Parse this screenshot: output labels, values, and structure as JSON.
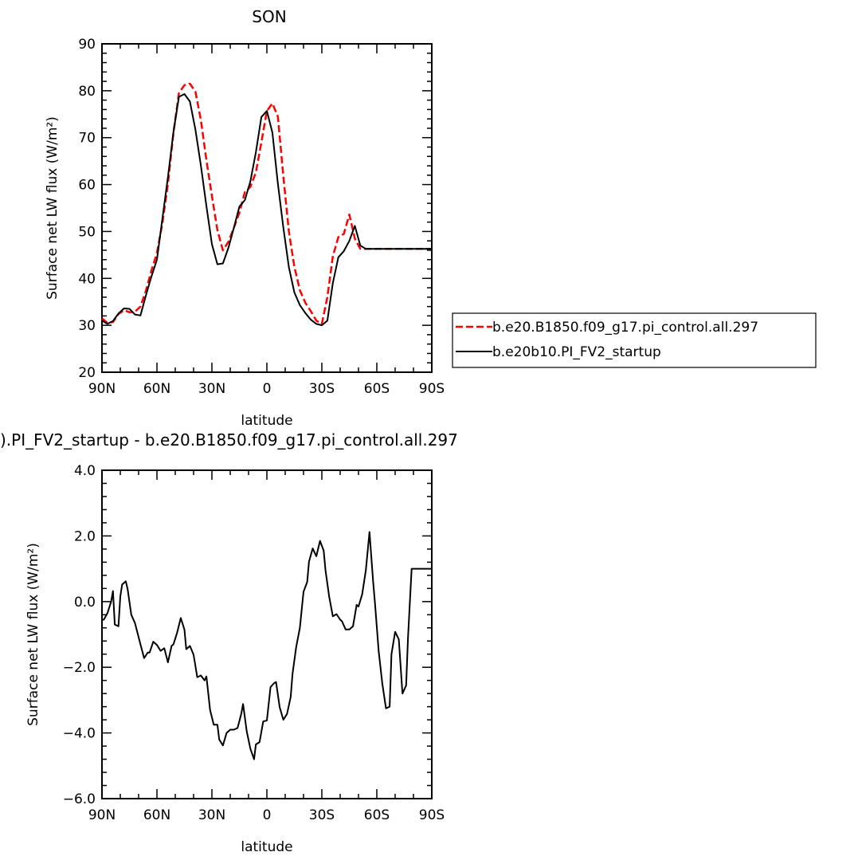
{
  "chart_data": [
    {
      "type": "line",
      "title": "SON",
      "xlabel": "latitude",
      "ylabel": "Surface net LW flux (W/m²)",
      "xlim": [
        90,
        -90
      ],
      "ylim": [
        20,
        90
      ],
      "xticks": [
        90,
        60,
        30,
        0,
        -30,
        -60,
        -90
      ],
      "xtick_labels": [
        "90N",
        "60N",
        "30N",
        "0",
        "30S",
        "60S",
        "90S"
      ],
      "yticks": [
        20,
        30,
        40,
        50,
        60,
        70,
        80,
        90
      ],
      "ytick_labels": [
        "20",
        "30",
        "40",
        "50",
        "60",
        "70",
        "80",
        "90"
      ],
      "legend_position": "right",
      "series": [
        {
          "name": "b.e20.B1850.f09_g17.pi_control.all.297",
          "color": "#ff0000",
          "style": "dashed",
          "x": [
            90,
            87,
            84,
            81,
            78,
            75,
            72,
            69,
            66,
            63,
            60,
            57,
            54,
            51,
            48,
            45,
            42,
            39,
            36,
            33,
            30,
            27,
            24,
            21,
            18,
            15,
            12,
            9,
            6,
            3,
            0,
            -3,
            -6,
            -9,
            -12,
            -15,
            -18,
            -21,
            -24,
            -27,
            -30,
            -33,
            -36,
            -39,
            -42,
            -45,
            -48,
            -51,
            -54,
            -57,
            -60,
            -63,
            -66,
            -69,
            -72,
            -75,
            -78,
            -81,
            -84,
            -87,
            -90
          ],
          "y": [
            31.5,
            30.5,
            30.7,
            32.4,
            33.2,
            32.8,
            32.9,
            34.0,
            37.4,
            41.7,
            45.4,
            51.8,
            60.2,
            71.0,
            79.5,
            81.2,
            81.5,
            79.8,
            73.7,
            65.2,
            57.6,
            50.3,
            46.0,
            47.8,
            50.8,
            54.0,
            58.4,
            59.5,
            62.6,
            69.0,
            75.7,
            77.3,
            74.5,
            61.7,
            50.0,
            42.5,
            37.5,
            34.8,
            33.0,
            31.0,
            30.3,
            36.0,
            44.7,
            48.8,
            49.5,
            53.6,
            48.5,
            46.3,
            46.3,
            46.3,
            46.3,
            46.3,
            46.3,
            46.3,
            46.3,
            46.3,
            46.3,
            46.3,
            46.3,
            46.3,
            46.3
          ]
        },
        {
          "name": "b.e20b10.PI_FV2_startup",
          "color": "#000000",
          "style": "solid",
          "x": [
            90,
            87,
            84,
            81,
            78,
            75,
            72,
            69,
            66,
            63,
            60,
            57,
            54,
            51,
            48,
            45,
            42,
            39,
            36,
            33,
            30,
            27,
            24,
            21,
            18,
            15,
            12,
            9,
            6,
            3,
            0,
            -3,
            -6,
            -9,
            -12,
            -15,
            -18,
            -21,
            -24,
            -27,
            -30,
            -33,
            -36,
            -39,
            -42,
            -45,
            -48,
            -51,
            -54,
            -57,
            -60,
            -63,
            -66,
            -69,
            -72,
            -75,
            -78,
            -81,
            -84,
            -87,
            -90
          ],
          "y": [
            31.0,
            30.3,
            30.9,
            32.5,
            33.6,
            33.5,
            32.3,
            32.1,
            36.4,
            40.4,
            44.0,
            52.8,
            61.6,
            71.2,
            78.7,
            79.3,
            77.7,
            71.7,
            64.0,
            55.4,
            47.3,
            43.0,
            43.2,
            46.5,
            50.8,
            55.3,
            56.7,
            60.7,
            66.9,
            74.4,
            75.7,
            71.1,
            60.2,
            50.8,
            42.4,
            37.0,
            34.3,
            32.6,
            31.2,
            30.3,
            30.0,
            31.0,
            39.0,
            44.5,
            45.8,
            48.0,
            51.2,
            47.0,
            46.3,
            46.3,
            46.3,
            46.3,
            46.3,
            46.3,
            46.3,
            46.3,
            46.3,
            46.3,
            46.3,
            46.3,
            46.3
          ]
        }
      ]
    },
    {
      "type": "line",
      "title": ").PI_FV2_startup - b.e20.B1850.f09_g17.pi_control.all.297",
      "xlabel": "latitude",
      "ylabel": "Surface net LW flux (W/m²)",
      "xlim": [
        90,
        -90
      ],
      "ylim": [
        -6.0,
        4.0
      ],
      "xticks": [
        90,
        60,
        30,
        0,
        -30,
        -60,
        -90
      ],
      "xtick_labels": [
        "90N",
        "60N",
        "30N",
        "0",
        "30S",
        "60S",
        "90S"
      ],
      "yticks": [
        -6.0,
        -4.0,
        -2.0,
        0.0,
        2.0,
        4.0
      ],
      "ytick_labels": [
        "−6.0",
        "−4.0",
        "−2.0",
        "0.0",
        "2.0",
        "4.0"
      ],
      "series": [
        {
          "color": "#000000",
          "style": "solid",
          "x": [
            90,
            89,
            87,
            85,
            84,
            83,
            81,
            80,
            79,
            77,
            76,
            74,
            72,
            69,
            67,
            65,
            64,
            62,
            60,
            58,
            56,
            54,
            52,
            51,
            49,
            47,
            45,
            44,
            42,
            40,
            38,
            36,
            34,
            33,
            31,
            29,
            27,
            26,
            24,
            22,
            20,
            18,
            16,
            14,
            13,
            11,
            9,
            7,
            6,
            4,
            2,
            0,
            -2,
            -4,
            -5,
            -7,
            -9,
            -11,
            -13,
            -14,
            -16,
            -18,
            -20,
            -22,
            -23,
            -25,
            -27,
            -29,
            -31,
            -32,
            -34,
            -36,
            -38,
            -40,
            -41,
            -43,
            -45,
            -47,
            -49,
            -50,
            -52,
            -54,
            -56,
            -58,
            -59,
            -61,
            -63,
            -65,
            -67,
            -68,
            -70,
            -72,
            -74,
            -76,
            -77,
            -79,
            -81,
            -83,
            -85,
            -86,
            -88,
            -90
          ],
          "y": [
            -0.55,
            -0.55,
            -0.35,
            0.0,
            0.32,
            -0.7,
            -0.75,
            0.15,
            0.52,
            0.62,
            0.38,
            -0.4,
            -0.65,
            -1.3,
            -1.72,
            -1.55,
            -1.55,
            -1.22,
            -1.32,
            -1.5,
            -1.42,
            -1.85,
            -1.35,
            -1.3,
            -0.95,
            -0.5,
            -0.85,
            -1.45,
            -1.35,
            -1.62,
            -2.3,
            -2.25,
            -2.4,
            -2.28,
            -3.3,
            -3.75,
            -3.75,
            -4.2,
            -4.38,
            -4.0,
            -3.9,
            -3.9,
            -3.85,
            -3.42,
            -3.12,
            -3.95,
            -4.48,
            -4.8,
            -4.35,
            -4.28,
            -3.65,
            -3.62,
            -2.6,
            -2.48,
            -2.45,
            -3.22,
            -3.6,
            -3.42,
            -2.9,
            -2.2,
            -1.38,
            -0.8,
            0.3,
            0.6,
            1.22,
            1.62,
            1.38,
            1.85,
            1.55,
            0.95,
            0.15,
            -0.45,
            -0.38,
            -0.55,
            -0.6,
            -0.85,
            -0.85,
            -0.75,
            -0.1,
            -0.15,
            0.22,
            0.95,
            2.12,
            0.6,
            -0.05,
            -1.5,
            -2.5,
            -3.25,
            -3.2,
            -1.6,
            -0.92,
            -1.15,
            -2.8,
            -2.55,
            -1.12,
            1.0,
            1.0,
            1.0,
            1.0,
            1.0,
            1.0,
            1.0
          ]
        }
      ]
    }
  ]
}
